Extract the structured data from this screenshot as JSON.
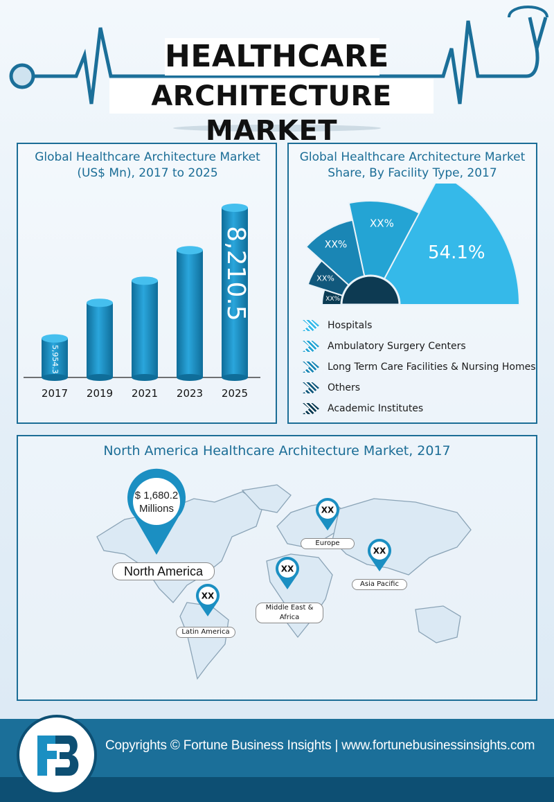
{
  "header": {
    "title_line1": "HEALTHCARE",
    "title_line2": "ARCHITECTURE MARKET"
  },
  "chart_data": [
    {
      "type": "bar",
      "title": "Global Healthcare Architecture Market (US$ Mn), 2017 to 2025",
      "categories": [
        "2017",
        "2019",
        "2021",
        "2023",
        "2025"
      ],
      "values": [
        5954.3,
        null,
        null,
        null,
        8210.5
      ],
      "value_labels": [
        "5,954.3",
        "",
        "",
        "",
        "8,210.5"
      ],
      "relative_heights_estimate": [
        0.23,
        0.44,
        0.57,
        0.75,
        1.0
      ],
      "color": "#1a86b8"
    },
    {
      "type": "pie",
      "title": "Global Healthcare Architecture Market Share, By Facility Type, 2017",
      "categories": [
        "Hospitals",
        "Ambulatory Surgery Centers",
        "Long Term Care Facilities & Nursing Homes",
        "Others",
        "Academic Institutes"
      ],
      "value_labels": [
        "54.1%",
        "XX%",
        "XX%",
        "XX%",
        "XX%"
      ],
      "values": [
        54.1,
        null,
        null,
        null,
        null
      ],
      "colors": [
        "#35b9e9",
        "#24a4d4",
        "#1a86b5",
        "#11587c",
        "#0a3b53"
      ]
    }
  ],
  "map": {
    "title": "North America Healthcare Architecture Market, 2017",
    "north_america_value": "$ 1,680.2",
    "north_america_unit": "Millions",
    "regions": [
      {
        "name": "North America",
        "value": "$ 1,680.2 Millions"
      },
      {
        "name": "Europe",
        "value": "XX"
      },
      {
        "name": "Asia Pacific",
        "value": "XX"
      },
      {
        "name": "Middle East & Africa",
        "value": "XX"
      },
      {
        "name": "Latin America",
        "value": "XX"
      }
    ]
  },
  "footer": {
    "text": "Copyrights © Fortune Business Insights | www.fortunebusinessinsights.com"
  }
}
